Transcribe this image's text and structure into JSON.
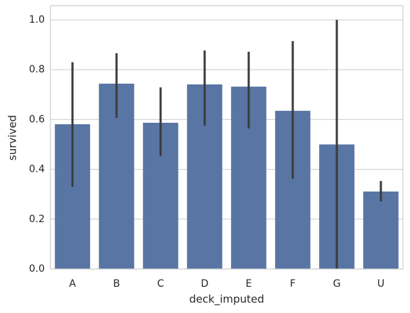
{
  "chart_data": {
    "type": "bar",
    "x_label": "deck_imputed",
    "y_label": "survived",
    "categories": [
      "A",
      "B",
      "C",
      "D",
      "E",
      "F",
      "G",
      "U"
    ],
    "values": [
      0.581,
      0.744,
      0.587,
      0.741,
      0.732,
      0.635,
      0.5,
      0.311
    ],
    "ci_low": [
      0.33,
      0.607,
      0.453,
      0.575,
      0.564,
      0.362,
      0.0,
      0.271
    ],
    "ci_high": [
      0.83,
      0.866,
      0.729,
      0.877,
      0.872,
      0.915,
      1.0,
      0.353
    ],
    "color": "#5875a4",
    "error_color": "#3b3b3b",
    "ylim": [
      0,
      1.057
    ],
    "yticks": [
      {
        "value": 0,
        "label": "0.0"
      },
      0.2,
      0.4,
      0.6,
      0.8,
      {
        "value": 1,
        "label": "1.0"
      }
    ],
    "grid": true
  }
}
